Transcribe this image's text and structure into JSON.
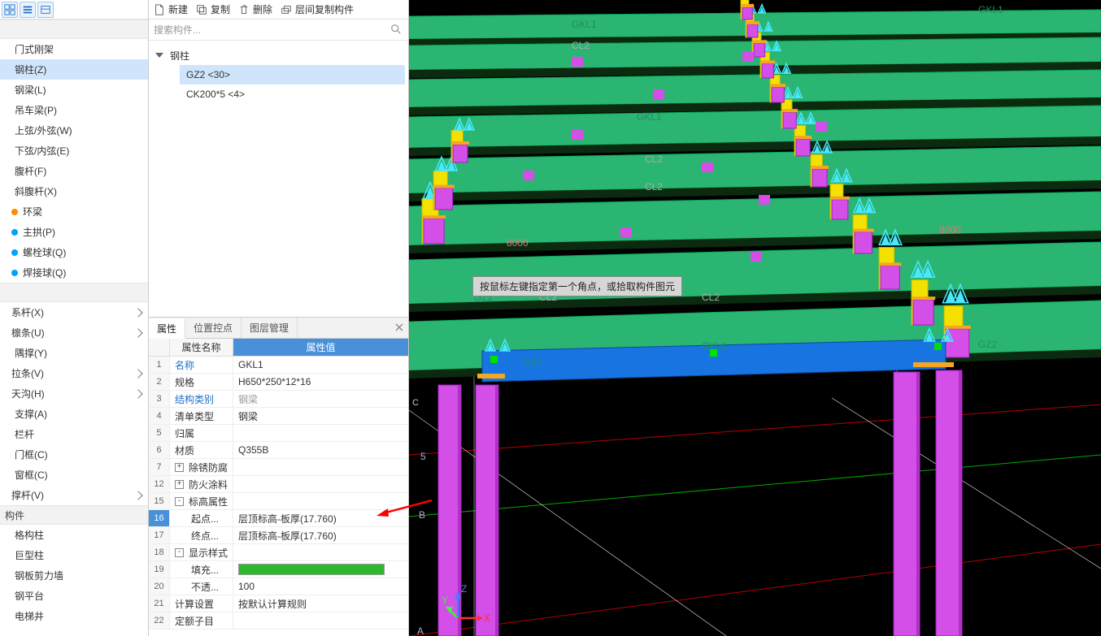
{
  "left_panel": {
    "toolbar_icons": [
      "grid-icon",
      "list-icon",
      "card-icon"
    ],
    "group1_header": "",
    "group1_items": [
      {
        "label": "门式刚架",
        "dot": null,
        "selected": false
      },
      {
        "label": "钢柱(Z)",
        "dot": null,
        "selected": true
      },
      {
        "label": "钢梁(L)",
        "dot": null,
        "selected": false
      },
      {
        "label": "吊车梁(P)",
        "dot": null,
        "selected": false
      },
      {
        "label": "上弦/外弦(W)",
        "dot": null,
        "selected": false
      },
      {
        "label": "下弦/内弦(E)",
        "dot": null,
        "selected": false
      },
      {
        "label": "腹杆(F)",
        "dot": null,
        "selected": false
      },
      {
        "label": "斜腹杆(X)",
        "dot": null,
        "selected": false
      },
      {
        "label": "环梁",
        "dot": "#ff8c00",
        "selected": false
      },
      {
        "label": "主拱(P)",
        "dot": "#00a2ff",
        "selected": false
      },
      {
        "label": "螺栓球(Q)",
        "dot": "#00a2ff",
        "selected": false
      },
      {
        "label": "焊接球(Q)",
        "dot": "#00a2ff",
        "selected": false
      }
    ],
    "group2_header": "",
    "group2_items": [
      {
        "label": "系杆(X)",
        "chev": true
      },
      {
        "label": "檩条(U)",
        "chev": true
      },
      {
        "label": "隅撑(Y)",
        "chev": false
      },
      {
        "label": "拉条(V)",
        "chev": true
      },
      {
        "label": "天沟(H)",
        "chev": true
      },
      {
        "label": "支撑(A)",
        "chev": false
      },
      {
        "label": "栏杆",
        "chev": false
      },
      {
        "label": "门框(C)",
        "chev": false
      },
      {
        "label": "窗框(C)",
        "chev": false
      },
      {
        "label": "撑杆(V)",
        "chev": true
      }
    ],
    "group3_header": "构件",
    "group3_items": [
      {
        "label": "格构柱"
      },
      {
        "label": "巨型柱"
      },
      {
        "label": "钢板剪力墙"
      },
      {
        "label": "钢平台"
      },
      {
        "label": "电梯井"
      }
    ]
  },
  "mid_panel": {
    "toolbar": {
      "new": "新建",
      "copy": "复制",
      "delete": "删除",
      "inter_copy": "层间复制构件"
    },
    "search_placeholder": "搜索构件...",
    "tree": {
      "root": "钢柱",
      "items": [
        {
          "label": "GZ2  <30>",
          "selected": true
        },
        {
          "label": "CK200*5 <4>",
          "selected": false
        }
      ]
    },
    "tabs": {
      "t1": "属性",
      "t2": "位置控点",
      "t3": "图层管理"
    },
    "header": {
      "name": "属性名称",
      "value": "属性值"
    },
    "rows": [
      {
        "n": "1",
        "name": "名称",
        "val": "GKL1",
        "link": true
      },
      {
        "n": "2",
        "name": "规格",
        "val": "H650*250*12*16"
      },
      {
        "n": "3",
        "name": "结构类别",
        "val": "钢梁",
        "link": true,
        "greyval": true
      },
      {
        "n": "4",
        "name": "清单类型",
        "val": "钢梁"
      },
      {
        "n": "5",
        "name": "归属",
        "val": ""
      },
      {
        "n": "6",
        "name": "材质",
        "val": "Q355B"
      },
      {
        "n": "7",
        "name": "除锈防腐",
        "val": "",
        "exp": "+"
      },
      {
        "n": "12",
        "name": "防火涂料",
        "val": "",
        "exp": "+"
      },
      {
        "n": "15",
        "name": "标高属性",
        "val": "",
        "exp": "-"
      },
      {
        "n": "16",
        "name": "起点...",
        "val": "层顶标高-板厚(17.760)",
        "indent": true,
        "sel": true
      },
      {
        "n": "17",
        "name": "终点...",
        "val": "层顶标高-板厚(17.760)",
        "indent": true
      },
      {
        "n": "18",
        "name": "显示样式",
        "val": "",
        "exp": "-"
      },
      {
        "n": "19",
        "name": "填充...",
        "val": "__SWATCH__",
        "indent": true
      },
      {
        "n": "20",
        "name": "不透...",
        "val": "100",
        "indent": true
      },
      {
        "n": "21",
        "name": "计算设置",
        "val": "按默认计算规则"
      },
      {
        "n": "22",
        "name": "定额子目",
        "val": ""
      }
    ]
  },
  "viewport": {
    "tooltip": "按鼠标左键指定第一个角点，或拾取构件图元",
    "dim8000_a": "8000",
    "dim8000_b": "8000",
    "axisA": "A",
    "axisB": "B",
    "axis5": "5",
    "beam_labels": {
      "gkl1_a": "GKL1",
      "gkl1_b": "GKL1",
      "gkl1_c": "GKL1",
      "gkl1_d": "GKL1",
      "cl2_a": "CL2",
      "cl2_b": "CL2",
      "cl2_c": "CL2",
      "cl2_d": "CL2",
      "cl2_e": "CL2",
      "gz2_a": "GZ2",
      "gz2_b": "GZ2",
      "gz2_c": "GZ2"
    },
    "axes": {
      "x": "X",
      "y": "Y",
      "z": "Z"
    },
    "colors": {
      "green_beam": "#2bb573",
      "magenta": "#d44ee8",
      "yellow": "#f5e100",
      "blue_beam": "#1874e0",
      "orange": "#f5a623",
      "cyan_arrow": "#48e8ff",
      "dark_strip": "#0c2a10",
      "red_line": "#b50000",
      "green_line": "#00aa00",
      "white_line": "#e8e8e8",
      "grid_blue": "#8aa0c8"
    }
  }
}
